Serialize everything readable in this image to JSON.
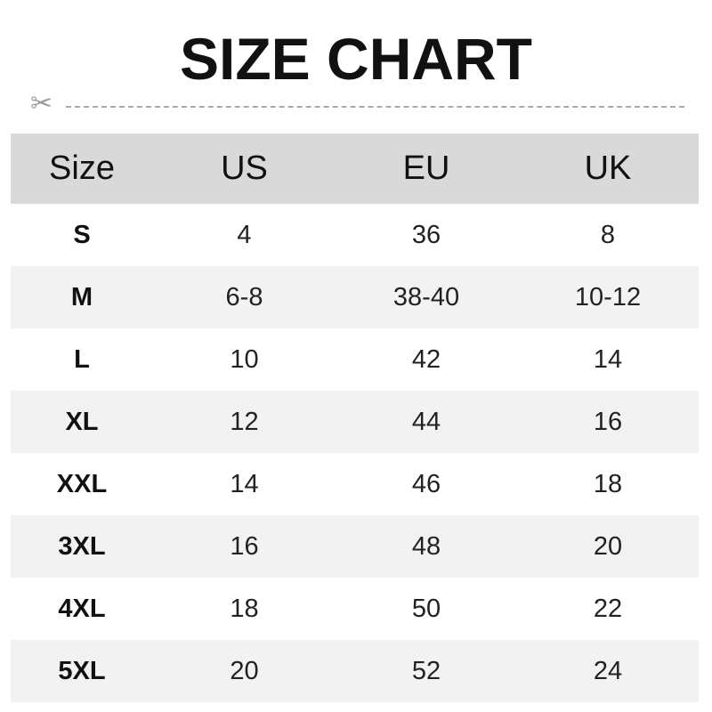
{
  "title": "SIZE CHART",
  "icons": {
    "cut_line": "scissors-icon"
  },
  "colors": {
    "header_bg": "#d9d9d9",
    "alt_row_bg": "#f2f2f2",
    "scissors": "#999999"
  },
  "table": {
    "headers": [
      "Size",
      "US",
      "EU",
      "UK"
    ],
    "rows": [
      [
        "S",
        "4",
        "36",
        "8"
      ],
      [
        "M",
        "6-8",
        "38-40",
        "10-12"
      ],
      [
        "L",
        "10",
        "42",
        "14"
      ],
      [
        "XL",
        "12",
        "44",
        "16"
      ],
      [
        "XXL",
        "14",
        "46",
        "18"
      ],
      [
        "3XL",
        "16",
        "48",
        "20"
      ],
      [
        "4XL",
        "18",
        "50",
        "22"
      ],
      [
        "5XL",
        "20",
        "52",
        "24"
      ]
    ]
  }
}
